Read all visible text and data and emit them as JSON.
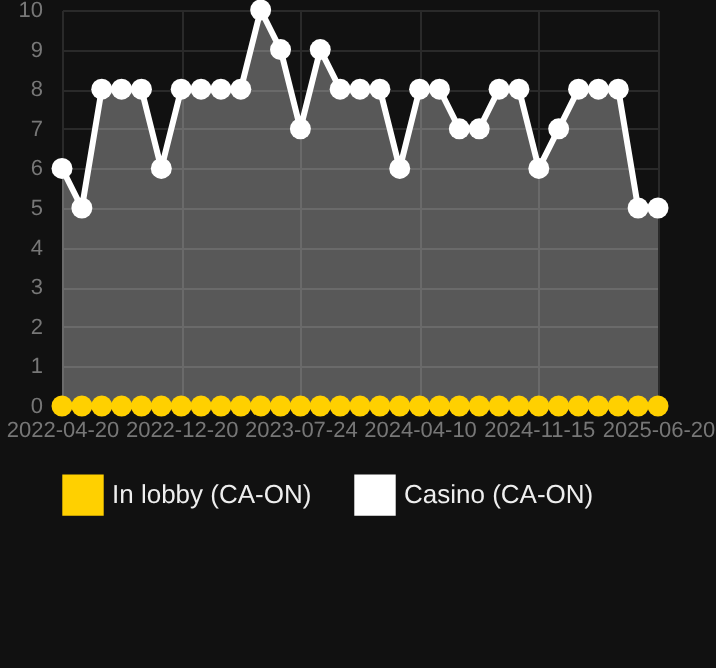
{
  "chart_data": {
    "type": "area",
    "categories": [
      "2022-04-20",
      null,
      null,
      null,
      null,
      null,
      "2022-12-20",
      null,
      null,
      null,
      null,
      null,
      "2023-07-24",
      null,
      null,
      null,
      null,
      null,
      "2024-04-10",
      null,
      null,
      null,
      null,
      null,
      "2024-11-15",
      null,
      null,
      null,
      null,
      null,
      "2025-06-20"
    ],
    "series": [
      {
        "name": "In lobby (CA-ON)",
        "type": "line",
        "color": "#ffd000",
        "values": [
          0,
          0,
          0,
          0,
          0,
          0,
          0,
          0,
          0,
          0,
          0,
          0,
          0,
          0,
          0,
          0,
          0,
          0,
          0,
          0,
          0,
          0,
          0,
          0,
          0,
          0,
          0,
          0,
          0,
          0,
          0
        ]
      },
      {
        "name": "Casino (CA-ON)",
        "color": "#ffffff",
        "values": [
          6,
          5,
          8,
          8,
          8,
          6,
          8,
          8,
          8,
          8,
          10,
          9,
          7,
          9,
          8,
          8,
          8,
          6,
          8,
          8,
          7,
          7,
          8,
          8,
          6,
          7,
          8,
          8,
          8,
          5,
          5
        ]
      }
    ],
    "ylim": [
      0,
      10
    ],
    "yticks": [
      0,
      1,
      2,
      3,
      4,
      5,
      6,
      7,
      8,
      9,
      10
    ],
    "grid": true,
    "legend": "bottom",
    "marker": "circle",
    "line_style": "solid"
  }
}
